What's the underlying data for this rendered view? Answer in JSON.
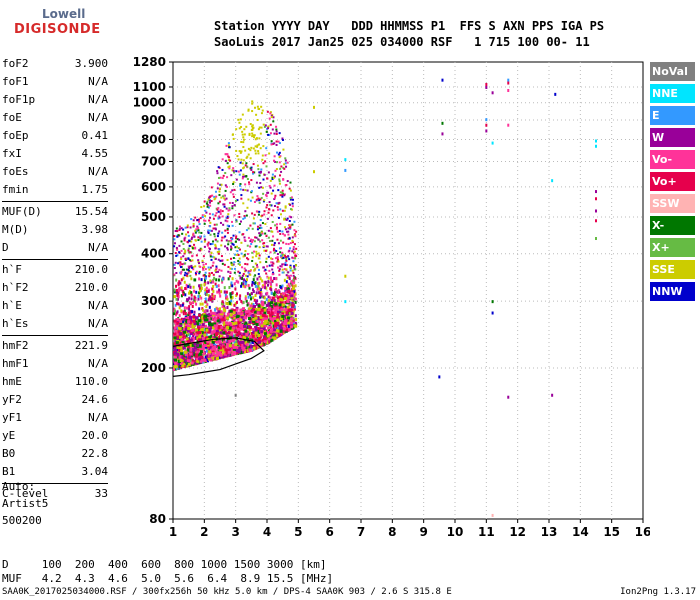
{
  "logo": {
    "line1": "Lowell",
    "line2": "DIGISONDE"
  },
  "header": {
    "labels": "Station YYYY DAY   DDD HHMMSS P1  FFS S AXN PPS IGA PS",
    "values": "SaoLuis 2017 Jan25 025 034000 RSF   1 715 100 00- 11"
  },
  "params_group1": [
    {
      "k": "foF2",
      "v": "3.900"
    },
    {
      "k": "foF1",
      "v": "N/A"
    },
    {
      "k": "foF1p",
      "v": "N/A"
    },
    {
      "k": "foE",
      "v": "N/A"
    },
    {
      "k": "foEp",
      "v": "0.41"
    },
    {
      "k": "fxI",
      "v": "4.55"
    },
    {
      "k": "foEs",
      "v": "N/A"
    },
    {
      "k": "fmin",
      "v": "1.75"
    }
  ],
  "params_group2": [
    {
      "k": "MUF(D)",
      "v": "15.54"
    },
    {
      "k": "M(D)",
      "v": "3.98"
    },
    {
      "k": "D",
      "v": "N/A"
    }
  ],
  "params_group3": [
    {
      "k": "h`F",
      "v": "210.0"
    },
    {
      "k": "h`F2",
      "v": "210.0"
    },
    {
      "k": "h`E",
      "v": "N/A"
    },
    {
      "k": "h`Es",
      "v": "N/A"
    }
  ],
  "params_group4": [
    {
      "k": "hmF2",
      "v": "221.9"
    },
    {
      "k": "hmF1",
      "v": "N/A"
    },
    {
      "k": "hmE",
      "v": "110.0"
    },
    {
      "k": "yF2",
      "v": "24.6"
    },
    {
      "k": "yF1",
      "v": "N/A"
    },
    {
      "k": "yE",
      "v": "20.0"
    },
    {
      "k": "B0",
      "v": "22.8"
    },
    {
      "k": "B1",
      "v": "3.04"
    }
  ],
  "params_group5": [
    {
      "k": "C-level",
      "v": "33"
    }
  ],
  "auto": {
    "line1": "Auto:",
    "line2": "Artist5",
    "line3": "500200"
  },
  "legend": [
    {
      "label": "NoVal",
      "color": "#808080"
    },
    {
      "label": "NNE",
      "color": "#00e5ff"
    },
    {
      "label": "E",
      "color": "#3399ff"
    },
    {
      "label": "W",
      "color": "#990099"
    },
    {
      "label": "Vo-",
      "color": "#ff3399"
    },
    {
      "label": "Vo+",
      "color": "#e6004c"
    },
    {
      "label": "SSW",
      "color": "#ffb3b3"
    },
    {
      "label": "X-",
      "color": "#007700"
    },
    {
      "label": "X+",
      "color": "#66bb44"
    },
    {
      "label": "SSE",
      "color": "#cccc00"
    },
    {
      "label": "NNW",
      "color": "#0000cc"
    }
  ],
  "dtable": {
    "row1": "D     100  200  400  600  800 1000 1500 3000 [km]",
    "row2": "MUF   4.2  4.3  4.6  5.0  5.6  6.4  8.9 15.5 [MHz]"
  },
  "footer": "SAA0K_2017025034000.RSF / 300fx256h 50 kHz 5.0 km / DPS-4 SAA0K 903 / 2.6 S 315.8 E",
  "version": "Ion2Png 1.3.17",
  "chart_data": {
    "type": "scatter",
    "xlim": [
      1,
      16
    ],
    "ylim": [
      80,
      1280
    ],
    "y_scale": "log",
    "xticks": [
      1,
      2,
      3,
      4,
      5,
      6,
      7,
      8,
      9,
      10,
      11,
      12,
      13,
      14,
      15,
      16
    ],
    "yticks": [
      80,
      200,
      300,
      400,
      500,
      600,
      700,
      800,
      900,
      1000,
      1100,
      1280
    ],
    "grid": "dotted",
    "trace_region": {
      "lower_edge_x": [
        1.0,
        1.5,
        2.0,
        2.5,
        3.0,
        3.5,
        4.0,
        4.5,
        4.9
      ],
      "lower_edge_y": [
        200,
        205,
        210,
        215,
        220,
        225,
        235,
        250,
        260
      ],
      "upper_edge_y": [
        480,
        500,
        560,
        720,
        900,
        1030,
        1000,
        800,
        500
      ]
    },
    "profile_curve": {
      "x": [
        1.0,
        1.5,
        2.0,
        2.5,
        3.0,
        3.5,
        3.9,
        3.6,
        3.0,
        2.3,
        1.5,
        1.0
      ],
      "y": [
        190,
        192,
        195,
        198,
        205,
        212,
        222,
        235,
        240,
        238,
        232,
        228
      ]
    },
    "scattered_points": [
      {
        "x": 9.6,
        "y": 1150,
        "dir": "NNW"
      },
      {
        "x": 9.6,
        "y": 885,
        "dir": "X-"
      },
      {
        "x": 9.6,
        "y": 830,
        "dir": "W"
      },
      {
        "x": 9.5,
        "y": 190,
        "dir": "NNW"
      },
      {
        "x": 11.0,
        "y": 1120,
        "dir": "Vo+"
      },
      {
        "x": 11.0,
        "y": 1100,
        "dir": "W"
      },
      {
        "x": 11.0,
        "y": 905,
        "dir": "E"
      },
      {
        "x": 11.0,
        "y": 875,
        "dir": "Vo+"
      },
      {
        "x": 11.0,
        "y": 845,
        "dir": "W"
      },
      {
        "x": 11.2,
        "y": 1065,
        "dir": "W"
      },
      {
        "x": 11.2,
        "y": 785,
        "dir": "NNE"
      },
      {
        "x": 11.2,
        "y": 300,
        "dir": "X-"
      },
      {
        "x": 11.2,
        "y": 280,
        "dir": "NNW"
      },
      {
        "x": 11.7,
        "y": 1150,
        "dir": "E"
      },
      {
        "x": 11.7,
        "y": 1130,
        "dir": "Vo+"
      },
      {
        "x": 11.7,
        "y": 1080,
        "dir": "Vo-"
      },
      {
        "x": 11.7,
        "y": 875,
        "dir": "Vo-"
      },
      {
        "x": 11.7,
        "y": 168,
        "dir": "W"
      },
      {
        "x": 13.2,
        "y": 1055,
        "dir": "NNW"
      },
      {
        "x": 13.1,
        "y": 625,
        "dir": "NNE"
      },
      {
        "x": 13.1,
        "y": 170,
        "dir": "W"
      },
      {
        "x": 14.5,
        "y": 795,
        "dir": "NNE"
      },
      {
        "x": 14.5,
        "y": 770,
        "dir": "NNE"
      },
      {
        "x": 14.5,
        "y": 585,
        "dir": "W"
      },
      {
        "x": 14.5,
        "y": 560,
        "dir": "Vo+"
      },
      {
        "x": 14.5,
        "y": 520,
        "dir": "W"
      },
      {
        "x": 14.5,
        "y": 490,
        "dir": "Vo+"
      },
      {
        "x": 14.5,
        "y": 440,
        "dir": "X+"
      },
      {
        "x": 6.5,
        "y": 710,
        "dir": "NNE"
      },
      {
        "x": 6.5,
        "y": 665,
        "dir": "E"
      },
      {
        "x": 6.5,
        "y": 350,
        "dir": "SSE"
      },
      {
        "x": 6.5,
        "y": 300,
        "dir": "NNE"
      },
      {
        "x": 5.5,
        "y": 975,
        "dir": "SSE"
      },
      {
        "x": 5.5,
        "y": 660,
        "dir": "SSE"
      },
      {
        "x": 3.0,
        "y": 170,
        "dir": "NoVal"
      },
      {
        "x": 11.2,
        "y": 82,
        "dir": "SSW"
      }
    ]
  }
}
